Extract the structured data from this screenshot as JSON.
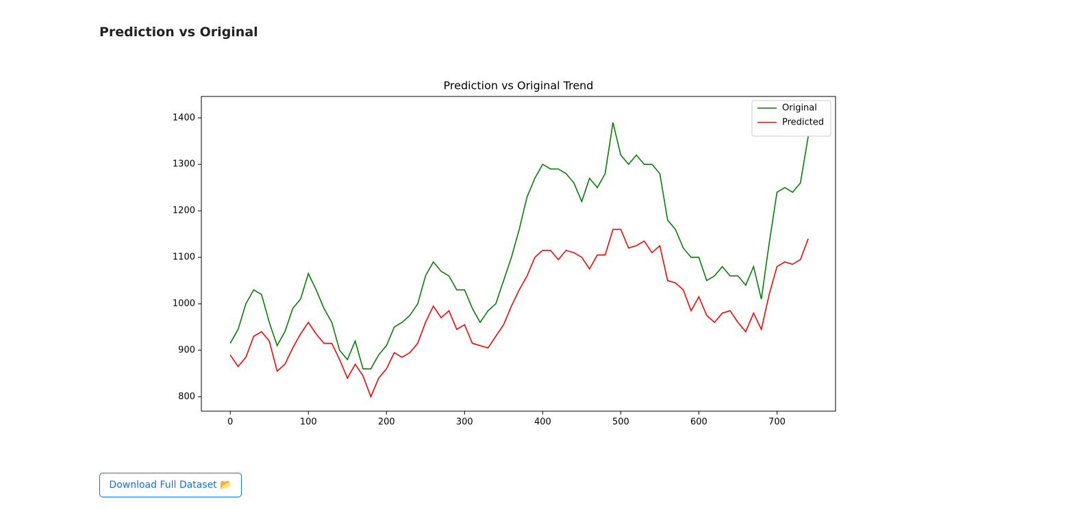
{
  "header": {
    "title": "Prediction vs Original"
  },
  "button": {
    "label": "Download Full Dataset 📂"
  },
  "chart_data": {
    "type": "line",
    "title": "Prediction vs Original Trend",
    "x": [
      0,
      10,
      20,
      30,
      40,
      50,
      60,
      70,
      80,
      90,
      100,
      110,
      120,
      130,
      140,
      150,
      160,
      170,
      180,
      190,
      200,
      210,
      220,
      230,
      240,
      250,
      260,
      270,
      280,
      290,
      300,
      310,
      320,
      330,
      340,
      350,
      360,
      370,
      380,
      390,
      400,
      410,
      420,
      430,
      440,
      450,
      460,
      470,
      480,
      490,
      500,
      510,
      520,
      530,
      540,
      550,
      560,
      570,
      580,
      590,
      600,
      610,
      620,
      630,
      640,
      650,
      660,
      670,
      680,
      690,
      700,
      710,
      720,
      730,
      740
    ],
    "series": [
      {
        "name": "Original",
        "color": "green",
        "values": [
          915,
          945,
          1000,
          1030,
          1020,
          960,
          910,
          940,
          990,
          1010,
          1065,
          1030,
          990,
          960,
          900,
          880,
          920,
          860,
          860,
          890,
          910,
          950,
          960,
          975,
          1000,
          1060,
          1090,
          1070,
          1060,
          1030,
          1030,
          990,
          960,
          985,
          1000,
          1050,
          1100,
          1160,
          1230,
          1270,
          1300,
          1290,
          1290,
          1280,
          1260,
          1220,
          1270,
          1250,
          1280,
          1390,
          1320,
          1300,
          1320,
          1300,
          1300,
          1280,
          1180,
          1160,
          1120,
          1100,
          1100,
          1050,
          1060,
          1080,
          1060,
          1060,
          1040,
          1080,
          1010,
          1130,
          1240,
          1250,
          1240,
          1260,
          1360
        ]
      },
      {
        "name": "Predicted",
        "color": "red",
        "values": [
          890,
          865,
          885,
          930,
          940,
          920,
          855,
          870,
          905,
          935,
          960,
          935,
          915,
          915,
          880,
          840,
          870,
          845,
          800,
          840,
          860,
          895,
          885,
          895,
          915,
          960,
          995,
          970,
          985,
          945,
          955,
          915,
          910,
          905,
          930,
          955,
          995,
          1030,
          1060,
          1100,
          1115,
          1115,
          1095,
          1115,
          1110,
          1100,
          1075,
          1105,
          1105,
          1160,
          1160,
          1120,
          1125,
          1135,
          1110,
          1125,
          1050,
          1045,
          1030,
          985,
          1015,
          975,
          960,
          980,
          985,
          960,
          940,
          980,
          945,
          1020,
          1080,
          1090,
          1085,
          1095,
          1140
        ]
      }
    ],
    "xlim": [
      -37,
      775
    ],
    "ylim": [
      769,
      1446
    ],
    "xticks": [
      0,
      100,
      200,
      300,
      400,
      500,
      600,
      700
    ],
    "yticks": [
      800,
      900,
      1000,
      1100,
      1200,
      1300,
      1400
    ],
    "legend": "upper right"
  }
}
